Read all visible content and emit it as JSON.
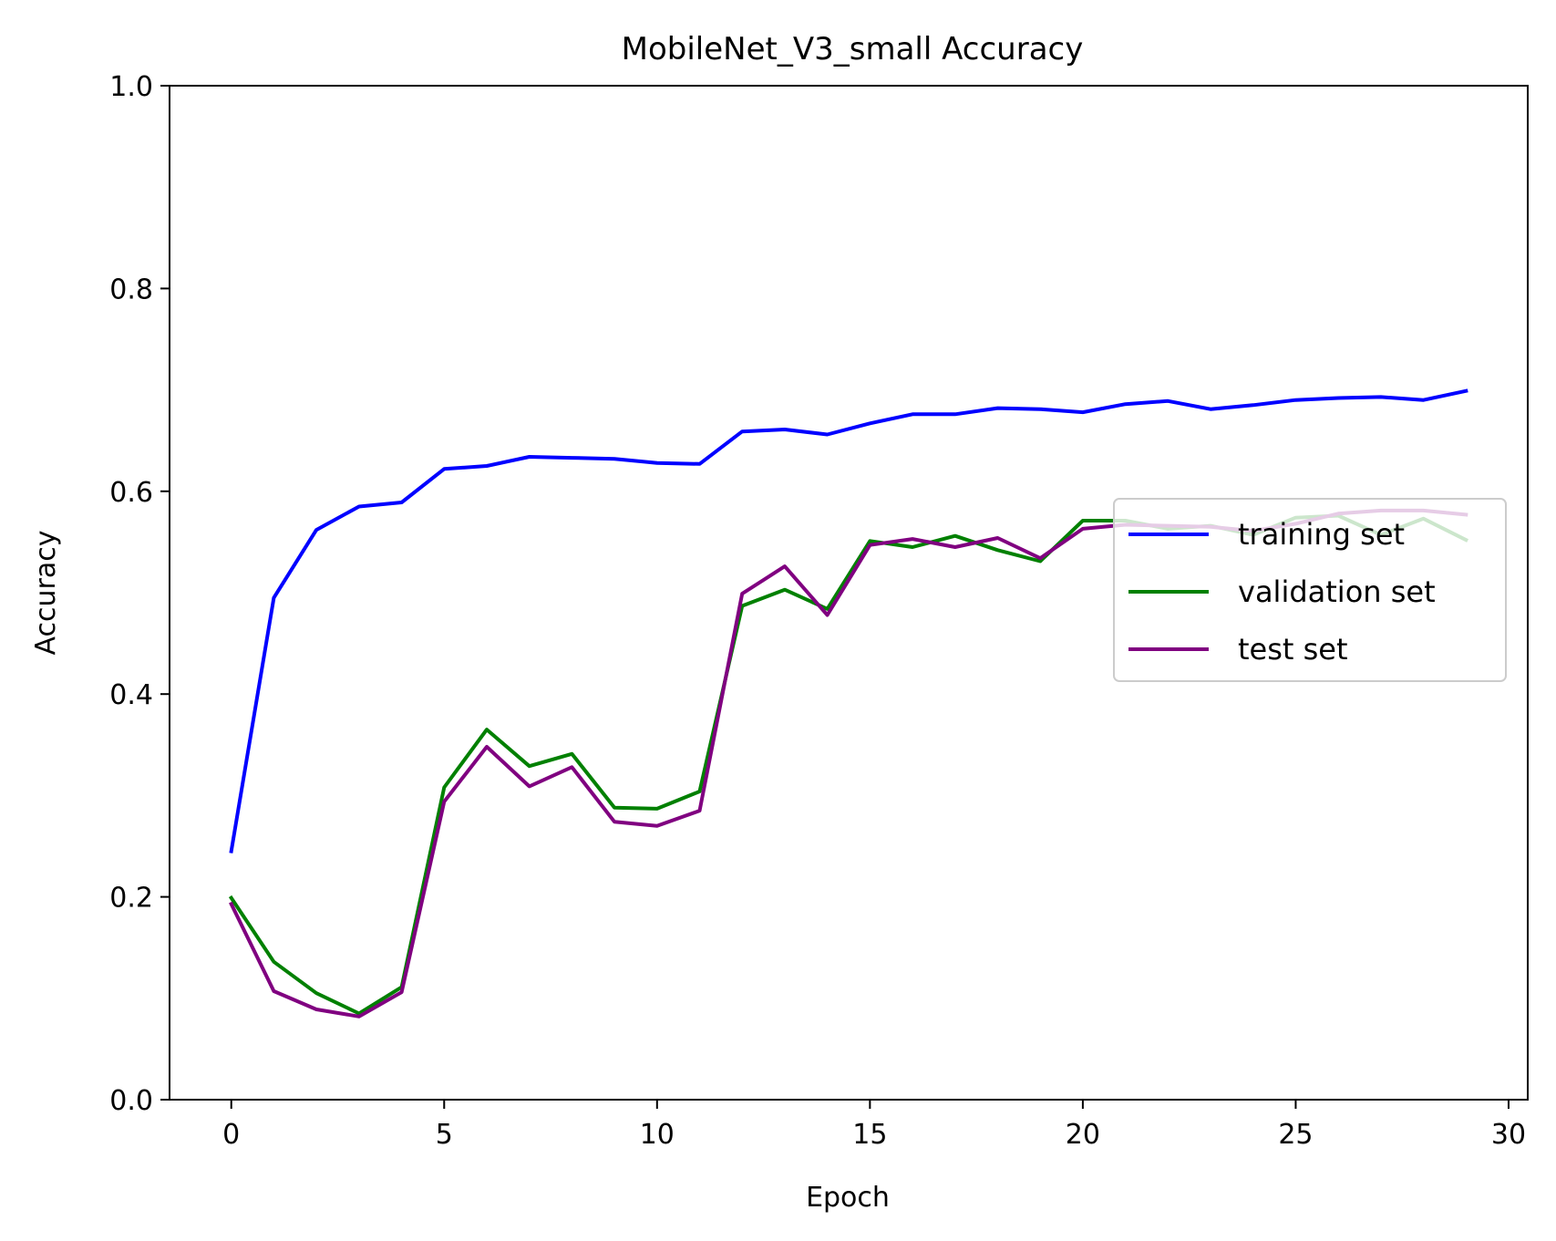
{
  "chart_data": {
    "type": "line",
    "title": "MobileNet_V3_small Accuracy",
    "xlabel": "Epoch",
    "ylabel": "Accuracy",
    "xlim": [
      -1.45,
      30.45
    ],
    "ylim": [
      0.0,
      1.0
    ],
    "xticks": [
      0,
      5,
      10,
      15,
      20,
      25,
      30
    ],
    "yticks": [
      0.0,
      0.2,
      0.4,
      0.6,
      0.8,
      1.0
    ],
    "xtick_labels": [
      "0",
      "5",
      "10",
      "15",
      "20",
      "25",
      "30"
    ],
    "ytick_labels": [
      "0.0",
      "0.2",
      "0.4",
      "0.6",
      "0.8",
      "1.0"
    ],
    "grid": false,
    "legend_position": "center-right",
    "x": [
      0,
      1,
      2,
      3,
      4,
      5,
      6,
      7,
      8,
      9,
      10,
      11,
      12,
      13,
      14,
      15,
      16,
      17,
      18,
      19,
      20,
      21,
      22,
      23,
      24,
      25,
      26,
      27,
      28,
      29
    ],
    "series": [
      {
        "name": "training set",
        "color": "#0000ff",
        "values": [
          0.245,
          0.495,
          0.562,
          0.585,
          0.589,
          0.622,
          0.625,
          0.634,
          0.633,
          0.632,
          0.628,
          0.627,
          0.659,
          0.661,
          0.656,
          0.667,
          0.676,
          0.676,
          0.682,
          0.681,
          0.678,
          0.686,
          0.689,
          0.681,
          0.685,
          0.69,
          0.692,
          0.693,
          0.69,
          0.699
        ]
      },
      {
        "name": "validation set",
        "color": "#008000",
        "values": [
          0.199,
          0.136,
          0.105,
          0.085,
          0.111,
          0.308,
          0.365,
          0.329,
          0.341,
          0.288,
          0.287,
          0.304,
          0.487,
          0.503,
          0.484,
          0.551,
          0.545,
          0.556,
          0.542,
          0.531,
          0.571,
          0.571,
          0.563,
          0.566,
          0.557,
          0.574,
          0.576,
          0.557,
          0.573,
          0.552
        ]
      },
      {
        "name": "test set",
        "color": "#800080",
        "values": [
          0.193,
          0.107,
          0.089,
          0.082,
          0.106,
          0.294,
          0.348,
          0.309,
          0.328,
          0.274,
          0.27,
          0.285,
          0.499,
          0.526,
          0.478,
          0.547,
          0.553,
          0.545,
          0.554,
          0.534,
          0.563,
          0.567,
          0.566,
          0.565,
          0.561,
          0.568,
          0.578,
          0.581,
          0.581,
          0.577
        ]
      }
    ]
  }
}
